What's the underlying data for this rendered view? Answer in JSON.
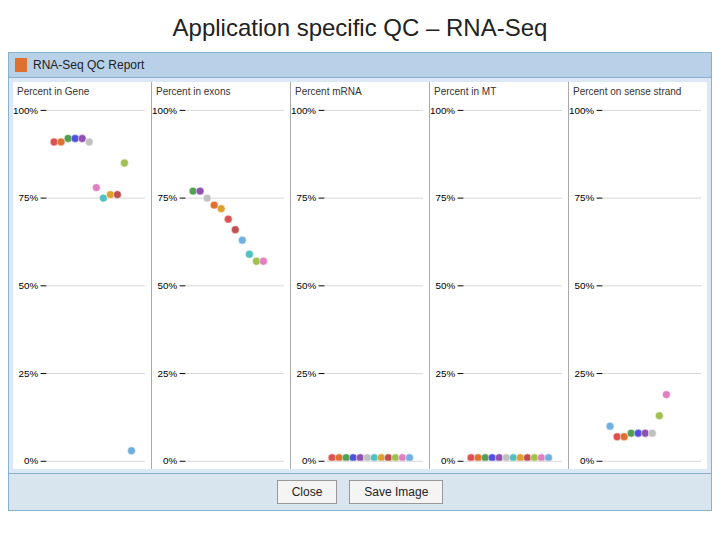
{
  "title": "Application specific QC – RNA-Seq",
  "subtitle": "RNA-Seq QC Report",
  "annotations": [
    "Close",
    "Save Image"
  ],
  "chart_data": [
    {
      "type": "scatter",
      "title": "Percent in Gene",
      "x": [
        1,
        2,
        3,
        4,
        5,
        6,
        7,
        8,
        9,
        10,
        11,
        12
      ],
      "values": [
        91,
        91,
        92,
        92,
        92,
        91,
        78,
        75,
        76,
        76,
        85,
        3
      ],
      "colors": [
        "#e05050",
        "#e07030",
        "#50a050",
        "#5050e0",
        "#9050b0",
        "#c0c0c0",
        "#e080c0",
        "#50c0c0",
        "#e0a030",
        "#c05050",
        "#a0c050",
        "#70b0e0"
      ],
      "xlim": [
        0,
        14
      ],
      "ylim": [
        0,
        100
      ],
      "yticks": [
        {
          "value": 0,
          "label": "0%"
        },
        {
          "value": 25,
          "label": "25%"
        },
        {
          "value": 50,
          "label": "50%"
        },
        {
          "value": 75,
          "label": "75%"
        },
        {
          "value": 100,
          "label": "100%"
        }
      ],
      "grid": true,
      "tick_labels": "y"
    },
    {
      "type": "scatter",
      "title": "Percent in exons",
      "x": [
        1,
        2,
        3,
        4,
        5,
        6,
        7,
        8,
        9,
        10,
        11
      ],
      "values": [
        77,
        77,
        75,
        73,
        72,
        69,
        66,
        63,
        59,
        57,
        57
      ],
      "colors": [
        "#50a050",
        "#9050b0",
        "#c0c0c0",
        "#e07030",
        "#e0a030",
        "#e05050",
        "#c05050",
        "#70b0e0",
        "#50c0c0",
        "#a0c050",
        "#e080c0"
      ],
      "xlim": [
        0,
        14
      ],
      "ylim": [
        0,
        100
      ],
      "yticks": [
        {
          "value": 0,
          "label": "0%"
        },
        {
          "value": 25,
          "label": "25%"
        },
        {
          "value": 50,
          "label": "50%"
        },
        {
          "value": 75,
          "label": "75%"
        },
        {
          "value": 100,
          "label": "100%"
        }
      ],
      "grid": true,
      "tick_labels": "y"
    },
    {
      "type": "scatter",
      "title": "Percent mRNA",
      "x": [
        1,
        2,
        3,
        4,
        5,
        6,
        7,
        8,
        9,
        10,
        11,
        12
      ],
      "values": [
        1,
        1,
        1,
        1,
        1,
        1,
        1,
        1,
        1,
        1,
        1,
        1
      ],
      "colors": [
        "#e05050",
        "#e07030",
        "#50a050",
        "#5050e0",
        "#9050b0",
        "#c0c0c0",
        "#50c0c0",
        "#e0a030",
        "#c05050",
        "#a0c050",
        "#e080c0",
        "#70b0e0"
      ],
      "xlim": [
        0,
        14
      ],
      "ylim": [
        0,
        100
      ],
      "yticks": [
        {
          "value": 0,
          "label": "0%"
        },
        {
          "value": 25,
          "label": "25%"
        },
        {
          "value": 50,
          "label": "50%"
        },
        {
          "value": 75,
          "label": "75%"
        },
        {
          "value": 100,
          "label": "100%"
        }
      ],
      "grid": true,
      "tick_labels": "y"
    },
    {
      "type": "scatter",
      "title": "Percent in MT",
      "x": [
        1,
        2,
        3,
        4,
        5,
        6,
        7,
        8,
        9,
        10,
        11,
        12
      ],
      "values": [
        1,
        1,
        1,
        1,
        1,
        1,
        1,
        1,
        1,
        1,
        1,
        1
      ],
      "colors": [
        "#e05050",
        "#e07030",
        "#50a050",
        "#5050e0",
        "#9050b0",
        "#c0c0c0",
        "#50c0c0",
        "#e0a030",
        "#c05050",
        "#a0c050",
        "#e080c0",
        "#70b0e0"
      ],
      "xlim": [
        0,
        14
      ],
      "ylim": [
        0,
        100
      ],
      "yticks": [
        {
          "value": 0,
          "label": "0%"
        },
        {
          "value": 25,
          "label": "25%"
        },
        {
          "value": 50,
          "label": "50%"
        },
        {
          "value": 75,
          "label": "75%"
        },
        {
          "value": 100,
          "label": "100%"
        }
      ],
      "grid": true,
      "tick_labels": "y"
    },
    {
      "type": "scatter",
      "title": "Percent on sense strand",
      "x": [
        1,
        2,
        3,
        4,
        5,
        6,
        7,
        8,
        9
      ],
      "values": [
        10,
        7,
        7,
        8,
        8,
        8,
        8,
        13,
        19
      ],
      "colors": [
        "#70b0e0",
        "#e05050",
        "#e07030",
        "#50a050",
        "#5050e0",
        "#9050b0",
        "#c0c0c0",
        "#a0c050",
        "#e080c0"
      ],
      "xlim": [
        0,
        14
      ],
      "ylim": [
        0,
        100
      ],
      "yticks": [
        {
          "value": 0,
          "label": "0%"
        },
        {
          "value": 25,
          "label": "25%"
        },
        {
          "value": 50,
          "label": "50%"
        },
        {
          "value": 75,
          "label": "75%"
        },
        {
          "value": 100,
          "label": "100%"
        }
      ],
      "grid": true,
      "tick_labels": "y"
    }
  ]
}
